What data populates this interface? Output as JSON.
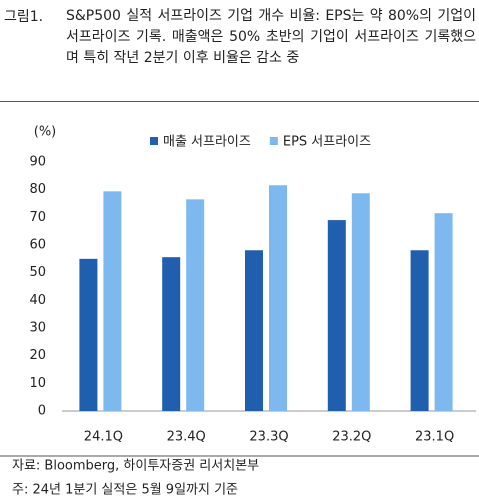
{
  "chart_data": {
    "type": "bar",
    "figure_label": "그림1.",
    "title": "S&P500 실적 서프라이즈 기업 개수 비율: EPS는 약 80%의 기업이 서프라이즈 기록. 매출액은 50% 초반의 기업이 서프라이즈 기록했으며 특히 작년 2분기 이후 비율은 감소 중",
    "y_unit": "(%)",
    "categories": [
      "24.1Q",
      "23.4Q",
      "23.3Q",
      "23.2Q",
      "23.1Q"
    ],
    "series": [
      {
        "name": "매출 서프라이즈",
        "color": "#1f5fae",
        "values": [
          55,
          55.6,
          58.1,
          69,
          58.1
        ]
      },
      {
        "name": "EPS 서프라이즈",
        "color": "#7db9ee",
        "values": [
          79.4,
          76.5,
          81.6,
          78.7,
          71.5
        ]
      }
    ],
    "ylim": [
      0,
      90
    ],
    "yticks": [
      0,
      10,
      20,
      30,
      40,
      50,
      60,
      70,
      80,
      90
    ],
    "grid": false,
    "legend": "top",
    "source": "자료: Bloomberg, 하이투자증권 리서치본부",
    "note": "주: 24년 1분기 실적은 5월 9일까지 기준"
  }
}
